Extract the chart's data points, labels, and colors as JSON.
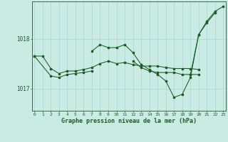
{
  "xlabel": "Graphe pression niveau de la mer (hPa)",
  "background_color": "#caeae4",
  "grid_color": "#b0d8d0",
  "line_color": "#1a5c28",
  "ylim": [
    1016.55,
    1018.75
  ],
  "yticks": [
    1017,
    1018
  ],
  "xlim": [
    -0.3,
    23.3
  ],
  "series": [
    {
      "x": [
        0,
        1,
        2,
        3,
        4,
        5,
        6,
        7,
        8,
        9,
        10,
        11,
        12,
        13,
        14,
        15,
        16,
        17,
        18,
        19,
        20
      ],
      "y": [
        1017.65,
        1017.65,
        1017.4,
        1017.3,
        1017.35,
        1017.35,
        1017.38,
        1017.42,
        1017.5,
        1017.55,
        1017.5,
        1017.52,
        1017.48,
        1017.45,
        1017.45,
        1017.45,
        1017.42,
        1017.4,
        1017.4,
        1017.4,
        1017.38
      ]
    },
    {
      "x": [
        0,
        2,
        3,
        4,
        5,
        6,
        7
      ],
      "y": [
        1017.65,
        1017.25,
        1017.22,
        1017.28,
        1017.3,
        1017.32,
        1017.35
      ]
    },
    {
      "x": [
        7,
        8,
        9,
        10,
        11,
        12,
        13,
        14,
        15,
        16,
        17,
        18,
        19,
        20,
        21,
        22
      ],
      "y": [
        1017.75,
        1017.88,
        1017.82,
        1017.82,
        1017.88,
        1017.72,
        1017.48,
        1017.38,
        1017.28,
        1017.15,
        1016.82,
        1016.88,
        1017.22,
        1018.08,
        1018.32,
        1018.52
      ]
    },
    {
      "x": [
        12,
        13,
        14,
        15,
        16,
        17,
        18,
        19,
        20
      ],
      "y": [
        1017.55,
        1017.42,
        1017.35,
        1017.32,
        1017.32,
        1017.32,
        1017.28,
        1017.28,
        1017.28
      ]
    },
    {
      "x": [
        19,
        20,
        21,
        22,
        23
      ],
      "y": [
        1017.28,
        1018.08,
        1018.35,
        1018.55,
        1018.65
      ]
    }
  ]
}
